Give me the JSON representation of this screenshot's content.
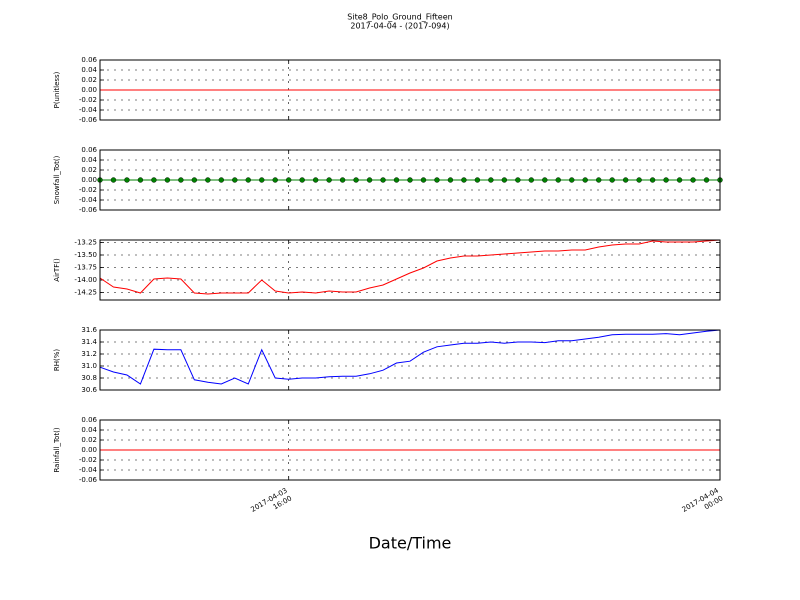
{
  "chart_data": [
    {
      "type": "line",
      "title": "Site8_Polo_Ground_Fifteen",
      "subtitle": "2017-04-04 - (2017-094)",
      "ylabel": "P(unitless)",
      "color": "#ff0000",
      "marker": false,
      "grid": true,
      "x": [
        "2017-04-03 12:30",
        "2017-04-03 12:45",
        "2017-04-03 13:00",
        "2017-04-03 13:15",
        "2017-04-03 13:30",
        "2017-04-03 13:45",
        "2017-04-03 14:00",
        "2017-04-03 14:15",
        "2017-04-03 14:30",
        "2017-04-03 14:45",
        "2017-04-03 15:00",
        "2017-04-03 15:15",
        "2017-04-03 15:30",
        "2017-04-03 15:45",
        "2017-04-03 16:00",
        "2017-04-03 16:15",
        "2017-04-03 16:30",
        "2017-04-03 16:45",
        "2017-04-03 17:00",
        "2017-04-03 17:15",
        "2017-04-03 17:30",
        "2017-04-03 17:45",
        "2017-04-03 18:00",
        "2017-04-03 18:15",
        "2017-04-03 18:30",
        "2017-04-03 18:45",
        "2017-04-03 19:00",
        "2017-04-03 19:15",
        "2017-04-03 19:30",
        "2017-04-03 19:45",
        "2017-04-03 20:00",
        "2017-04-03 20:15",
        "2017-04-03 20:30",
        "2017-04-03 20:45",
        "2017-04-03 21:00",
        "2017-04-03 21:15",
        "2017-04-03 21:30",
        "2017-04-03 21:45",
        "2017-04-03 22:00",
        "2017-04-03 22:15",
        "2017-04-03 22:30",
        "2017-04-03 22:45",
        "2017-04-03 23:00",
        "2017-04-03 23:15",
        "2017-04-03 23:30",
        "2017-04-03 23:45",
        "2017-04-04 00:00"
      ],
      "values": [
        0,
        0,
        0,
        0,
        0,
        0,
        0,
        0,
        0,
        0,
        0,
        0,
        0,
        0,
        0,
        0,
        0,
        0,
        0,
        0,
        0,
        0,
        0,
        0,
        0,
        0,
        0,
        0,
        0,
        0,
        0,
        0,
        0,
        0,
        0,
        0,
        0,
        0,
        0,
        0,
        0,
        0,
        0,
        0,
        0,
        0,
        0
      ],
      "xlim": [
        "2017-04-03 12:30",
        "2017-04-04 00:00"
      ],
      "xticks": [
        "2017-04-03 16:00",
        "2017-04-04 00:00"
      ],
      "ylim": [
        -0.06,
        0.06
      ],
      "yticks": [
        0.06,
        0.04,
        0.02,
        {
          "value": 0,
          "label": "0.00"
        },
        -0.02,
        -0.04,
        -0.06
      ]
    },
    {
      "type": "line",
      "ylabel": "Snowfall_Tot()",
      "color": "#008000",
      "marker": true,
      "grid": true,
      "x": [
        "2017-04-03 12:30",
        "2017-04-03 12:45",
        "2017-04-03 13:00",
        "2017-04-03 13:15",
        "2017-04-03 13:30",
        "2017-04-03 13:45",
        "2017-04-03 14:00",
        "2017-04-03 14:15",
        "2017-04-03 14:30",
        "2017-04-03 14:45",
        "2017-04-03 15:00",
        "2017-04-03 15:15",
        "2017-04-03 15:30",
        "2017-04-03 15:45",
        "2017-04-03 16:00",
        "2017-04-03 16:15",
        "2017-04-03 16:30",
        "2017-04-03 16:45",
        "2017-04-03 17:00",
        "2017-04-03 17:15",
        "2017-04-03 17:30",
        "2017-04-03 17:45",
        "2017-04-03 18:00",
        "2017-04-03 18:15",
        "2017-04-03 18:30",
        "2017-04-03 18:45",
        "2017-04-03 19:00",
        "2017-04-03 19:15",
        "2017-04-03 19:30",
        "2017-04-03 19:45",
        "2017-04-03 20:00",
        "2017-04-03 20:15",
        "2017-04-03 20:30",
        "2017-04-03 20:45",
        "2017-04-03 21:00",
        "2017-04-03 21:15",
        "2017-04-03 21:30",
        "2017-04-03 21:45",
        "2017-04-03 22:00",
        "2017-04-03 22:15",
        "2017-04-03 22:30",
        "2017-04-03 22:45",
        "2017-04-03 23:00",
        "2017-04-03 23:15",
        "2017-04-03 23:30",
        "2017-04-03 23:45",
        "2017-04-04 00:00"
      ],
      "values": [
        0,
        0,
        0,
        0,
        0,
        0,
        0,
        0,
        0,
        0,
        0,
        0,
        0,
        0,
        0,
        0,
        0,
        0,
        0,
        0,
        0,
        0,
        0,
        0,
        0,
        0,
        0,
        0,
        0,
        0,
        0,
        0,
        0,
        0,
        0,
        0,
        0,
        0,
        0,
        0,
        0,
        0,
        0,
        0,
        0,
        0,
        0
      ],
      "xlim": [
        "2017-04-03 12:30",
        "2017-04-04 00:00"
      ],
      "xticks": [
        "2017-04-03 16:00",
        "2017-04-04 00:00"
      ],
      "ylim": [
        -0.06,
        0.06
      ],
      "yticks": [
        0.06,
        0.04,
        0.02,
        {
          "value": 0,
          "label": "0.00"
        },
        -0.02,
        -0.04,
        -0.06
      ]
    },
    {
      "type": "line",
      "ylabel": "AirTF()",
      "color": "#ff0000",
      "marker": false,
      "grid": true,
      "x": [
        "2017-04-03 12:30",
        "2017-04-03 12:45",
        "2017-04-03 13:00",
        "2017-04-03 13:15",
        "2017-04-03 13:30",
        "2017-04-03 13:45",
        "2017-04-03 14:00",
        "2017-04-03 14:15",
        "2017-04-03 14:30",
        "2017-04-03 14:45",
        "2017-04-03 15:00",
        "2017-04-03 15:15",
        "2017-04-03 15:30",
        "2017-04-03 15:45",
        "2017-04-03 16:00",
        "2017-04-03 16:15",
        "2017-04-03 16:30",
        "2017-04-03 16:45",
        "2017-04-03 17:00",
        "2017-04-03 17:15",
        "2017-04-03 17:30",
        "2017-04-03 17:45",
        "2017-04-03 18:00",
        "2017-04-03 18:15",
        "2017-04-03 18:30",
        "2017-04-03 18:45",
        "2017-04-03 19:00",
        "2017-04-03 19:15",
        "2017-04-03 19:30",
        "2017-04-03 19:45",
        "2017-04-03 20:00",
        "2017-04-03 20:15",
        "2017-04-03 20:30",
        "2017-04-03 20:45",
        "2017-04-03 21:00",
        "2017-04-03 21:15",
        "2017-04-03 21:30",
        "2017-04-03 21:45",
        "2017-04-03 22:00",
        "2017-04-03 22:15",
        "2017-04-03 22:30",
        "2017-04-03 22:45",
        "2017-04-03 23:00",
        "2017-04-03 23:15",
        "2017-04-03 23:30",
        "2017-04-03 23:45",
        "2017-04-04 00:00"
      ],
      "values": [
        -13.96,
        -14.14,
        -14.18,
        -14.26,
        -13.98,
        -13.96,
        -13.98,
        -14.26,
        -14.28,
        -14.26,
        -14.26,
        -14.26,
        -14.0,
        -14.22,
        -14.26,
        -14.24,
        -14.26,
        -14.22,
        -14.24,
        -14.24,
        -14.16,
        -14.1,
        -13.98,
        -13.86,
        -13.76,
        -13.62,
        -13.56,
        -13.52,
        -13.52,
        -13.5,
        -13.48,
        -13.46,
        -13.44,
        -13.42,
        -13.42,
        -13.4,
        -13.4,
        -13.34,
        -13.3,
        -13.28,
        -13.28,
        -13.22,
        -13.24,
        -13.24,
        -13.24,
        -13.22,
        -13.2
      ],
      "xlim": [
        "2017-04-03 12:30",
        "2017-04-04 00:00"
      ],
      "xticks": [
        "2017-04-03 16:00",
        "2017-04-04 00:00"
      ],
      "ylim": [
        -14.4,
        -13.2
      ],
      "yticks": [
        -13.25,
        {
          "value": -13.5,
          "label": "-13.50"
        },
        -13.75,
        {
          "value": -14,
          "label": "-14.00"
        },
        -14.25
      ]
    },
    {
      "type": "line",
      "ylabel": "RH(%)",
      "color": "#0000ff",
      "marker": false,
      "grid": true,
      "x": [
        "2017-04-03 12:30",
        "2017-04-03 12:45",
        "2017-04-03 13:00",
        "2017-04-03 13:15",
        "2017-04-03 13:30",
        "2017-04-03 13:45",
        "2017-04-03 14:00",
        "2017-04-03 14:15",
        "2017-04-03 14:30",
        "2017-04-03 14:45",
        "2017-04-03 15:00",
        "2017-04-03 15:15",
        "2017-04-03 15:30",
        "2017-04-03 15:45",
        "2017-04-03 16:00",
        "2017-04-03 16:15",
        "2017-04-03 16:30",
        "2017-04-03 16:45",
        "2017-04-03 17:00",
        "2017-04-03 17:15",
        "2017-04-03 17:30",
        "2017-04-03 17:45",
        "2017-04-03 18:00",
        "2017-04-03 18:15",
        "2017-04-03 18:30",
        "2017-04-03 18:45",
        "2017-04-03 19:00",
        "2017-04-03 19:15",
        "2017-04-03 19:30",
        "2017-04-03 19:45",
        "2017-04-03 20:00",
        "2017-04-03 20:15",
        "2017-04-03 20:30",
        "2017-04-03 20:45",
        "2017-04-03 21:00",
        "2017-04-03 21:15",
        "2017-04-03 21:30",
        "2017-04-03 21:45",
        "2017-04-03 22:00",
        "2017-04-03 22:15",
        "2017-04-03 22:30",
        "2017-04-03 22:45",
        "2017-04-03 23:00",
        "2017-04-03 23:15",
        "2017-04-03 23:30",
        "2017-04-03 23:45",
        "2017-04-04 00:00"
      ],
      "values": [
        30.98,
        30.9,
        30.85,
        30.7,
        31.28,
        31.27,
        31.27,
        30.77,
        30.73,
        30.7,
        30.8,
        30.7,
        31.27,
        30.8,
        30.78,
        30.8,
        30.8,
        30.82,
        30.83,
        30.83,
        30.87,
        30.93,
        31.05,
        31.08,
        31.23,
        31.32,
        31.35,
        31.38,
        31.38,
        31.4,
        31.38,
        31.4,
        31.4,
        31.39,
        31.42,
        31.42,
        31.45,
        31.48,
        31.52,
        31.53,
        31.53,
        31.53,
        31.54,
        31.52,
        31.55,
        31.58,
        31.6
      ],
      "xlim": [
        "2017-04-03 12:30",
        "2017-04-04 00:00"
      ],
      "xticks": [
        "2017-04-03 16:00",
        "2017-04-04 00:00"
      ],
      "ylim": [
        30.6,
        31.6
      ],
      "yticks": [
        31.6,
        31.4,
        31.2,
        {
          "value": 31,
          "label": "31.0"
        },
        30.8,
        30.6
      ]
    },
    {
      "type": "line",
      "ylabel": "Rainfall_Tot()",
      "xlabel": "Date/Time",
      "color": "#ff0000",
      "marker": false,
      "grid": true,
      "x": [
        "2017-04-03 12:30",
        "2017-04-03 12:45",
        "2017-04-03 13:00",
        "2017-04-03 13:15",
        "2017-04-03 13:30",
        "2017-04-03 13:45",
        "2017-04-03 14:00",
        "2017-04-03 14:15",
        "2017-04-03 14:30",
        "2017-04-03 14:45",
        "2017-04-03 15:00",
        "2017-04-03 15:15",
        "2017-04-03 15:30",
        "2017-04-03 15:45",
        "2017-04-03 16:00",
        "2017-04-03 16:15",
        "2017-04-03 16:30",
        "2017-04-03 16:45",
        "2017-04-03 17:00",
        "2017-04-03 17:15",
        "2017-04-03 17:30",
        "2017-04-03 17:45",
        "2017-04-03 18:00",
        "2017-04-03 18:15",
        "2017-04-03 18:30",
        "2017-04-03 18:45",
        "2017-04-03 19:00",
        "2017-04-03 19:15",
        "2017-04-03 19:30",
        "2017-04-03 19:45",
        "2017-04-03 20:00",
        "2017-04-03 20:15",
        "2017-04-03 20:30",
        "2017-04-03 20:45",
        "2017-04-03 21:00",
        "2017-04-03 21:15",
        "2017-04-03 21:30",
        "2017-04-03 21:45",
        "2017-04-03 22:00",
        "2017-04-03 22:15",
        "2017-04-03 22:30",
        "2017-04-03 22:45",
        "2017-04-03 23:00",
        "2017-04-03 23:15",
        "2017-04-03 23:30",
        "2017-04-03 23:45",
        "2017-04-04 00:00"
      ],
      "values": [
        0,
        0,
        0,
        0,
        0,
        0,
        0,
        0,
        0,
        0,
        0,
        0,
        0,
        0,
        0,
        0,
        0,
        0,
        0,
        0,
        0,
        0,
        0,
        0,
        0,
        0,
        0,
        0,
        0,
        0,
        0,
        0,
        0,
        0,
        0,
        0,
        0,
        0,
        0,
        0,
        0,
        0,
        0,
        0,
        0,
        0,
        0
      ],
      "xlim": [
        "2017-04-03 12:30",
        "2017-04-04 00:00"
      ],
      "xticks": [
        {
          "value": "2017-04-03 16:00",
          "label": "2017-04-03 16:00"
        },
        {
          "value": "2017-04-04 00:00",
          "label": "2017-04-04 00:00"
        }
      ],
      "ylim": [
        -0.06,
        0.06
      ],
      "yticks": [
        0.06,
        0.04,
        0.02,
        {
          "value": 0,
          "label": "0.00"
        },
        -0.02,
        -0.04,
        -0.06
      ]
    }
  ]
}
